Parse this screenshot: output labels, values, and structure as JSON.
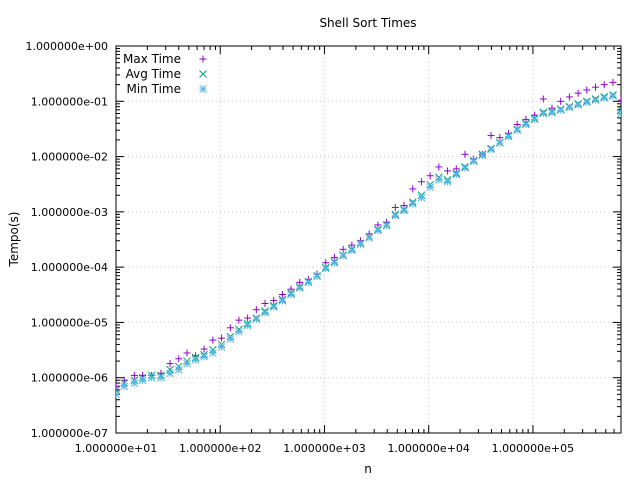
{
  "chart_data": {
    "type": "scatter",
    "title": "Shell Sort Times",
    "xlabel": "n",
    "ylabel": "Tempo(s)",
    "xscale": "log",
    "yscale": "log",
    "xlim": [
      10,
      700000
    ],
    "ylim": [
      1e-07,
      1
    ],
    "grid": true,
    "legend_position": "top-left",
    "x_ticks": [
      {
        "value": 10,
        "label": "1.000000e+01"
      },
      {
        "value": 100,
        "label": "1.000000e+02"
      },
      {
        "value": 1000,
        "label": "1.000000e+03"
      },
      {
        "value": 10000,
        "label": "1.000000e+04"
      },
      {
        "value": 100000,
        "label": "1.000000e+05"
      }
    ],
    "y_ticks": [
      {
        "value": 1,
        "label": "1.000000e+00"
      },
      {
        "value": 0.1,
        "label": "1.000000e-01"
      },
      {
        "value": 0.01,
        "label": "1.000000e-02"
      },
      {
        "value": 0.001,
        "label": "1.000000e-03"
      },
      {
        "value": 0.0001,
        "label": "1.000000e-04"
      },
      {
        "value": 1e-05,
        "label": "1.000000e-05"
      },
      {
        "value": 1e-06,
        "label": "1.000000e-06"
      },
      {
        "value": 1e-07,
        "label": "1.000000e-07"
      }
    ],
    "x": [
      10,
      12,
      15,
      18,
      22,
      27,
      33,
      40,
      48,
      58,
      70,
      85,
      103,
      125,
      151,
      183,
      222,
      269,
      326,
      395,
      478,
      579,
      701,
      849,
      1029,
      1247,
      1511,
      1831,
      2219,
      2689,
      3259,
      3950,
      4787,
      5802,
      7032,
      8522,
      10329,
      12519,
      15173,
      18390,
      22289,
      27015,
      32742,
      39684,
      48097,
      58294,
      70653,
      85632,
      103786,
      125790,
      152457,
      184778,
      223951,
      271429,
      328973,
      398716,
      483245,
      585694,
      700000
    ],
    "series": [
      {
        "name": "Max Time",
        "marker": "plus",
        "color": "#9400d3",
        "values": [
          7e-07,
          9e-07,
          1.1e-06,
          1.1e-06,
          1.1e-06,
          1.2e-06,
          1.8e-06,
          2.2e-06,
          2.8e-06,
          2.5e-06,
          3.3e-06,
          4.8e-06,
          5.2e-06,
          8e-06,
          1.1e-05,
          1.2e-05,
          1.7e-05,
          2.2e-05,
          2.5e-05,
          3.2e-05,
          4e-05,
          5.3e-05,
          6e-05,
          7.5e-05,
          0.00012,
          0.00015,
          0.00021,
          0.00025,
          0.0003,
          0.0004,
          0.00058,
          0.00065,
          0.0012,
          0.0013,
          0.0026,
          0.0035,
          0.0045,
          0.0065,
          0.0055,
          0.006,
          0.011,
          0.009,
          0.011,
          0.024,
          0.022,
          0.026,
          0.038,
          0.047,
          0.056,
          0.11,
          0.075,
          0.1,
          0.12,
          0.14,
          0.16,
          0.18,
          0.2,
          0.22,
          0.105
        ]
      },
      {
        "name": "Avg Time",
        "marker": "cross",
        "color": "#009e73",
        "values": [
          6e-07,
          8e-07,
          9e-07,
          1e-06,
          1.1e-06,
          1.1e-06,
          1.4e-06,
          1.6e-06,
          2e-06,
          2.3e-06,
          2.6e-06,
          3.2e-06,
          4e-06,
          5.5e-06,
          7.5e-06,
          9.5e-06,
          1.2e-05,
          1.6e-05,
          2e-05,
          2.6e-05,
          3.4e-05,
          4.4e-05,
          5.5e-05,
          7e-05,
          9.8e-05,
          0.000125,
          0.000165,
          0.00021,
          0.00027,
          0.00035,
          0.00048,
          0.00058,
          0.0009,
          0.0011,
          0.0015,
          0.002,
          0.0031,
          0.0042,
          0.0038,
          0.005,
          0.0065,
          0.0085,
          0.011,
          0.014,
          0.018,
          0.024,
          0.031,
          0.04,
          0.049,
          0.063,
          0.065,
          0.072,
          0.08,
          0.09,
          0.1,
          0.11,
          0.12,
          0.13,
          0.07
        ]
      },
      {
        "name": "Min Time",
        "marker": "star",
        "color": "#56b4e9",
        "values": [
          5e-07,
          7e-07,
          8e-07,
          9e-07,
          1e-06,
          1e-06,
          1.2e-06,
          1.4e-06,
          1.8e-06,
          2.1e-06,
          2.4e-06,
          2.8e-06,
          3.6e-06,
          5e-06,
          6.8e-06,
          8.8e-06,
          1.15e-05,
          1.5e-05,
          1.9e-05,
          2.45e-05,
          3.2e-05,
          4.2e-05,
          5.3e-05,
          6.8e-05,
          9.4e-05,
          0.00012,
          0.00016,
          0.0002,
          0.00026,
          0.00034,
          0.00046,
          0.00056,
          0.00085,
          0.00105,
          0.0014,
          0.0018,
          0.0028,
          0.0038,
          0.0035,
          0.0047,
          0.0062,
          0.0082,
          0.0105,
          0.0135,
          0.0175,
          0.023,
          0.03,
          0.038,
          0.047,
          0.06,
          0.062,
          0.069,
          0.077,
          0.086,
          0.096,
          0.105,
          0.115,
          0.125,
          0.06
        ]
      }
    ]
  }
}
